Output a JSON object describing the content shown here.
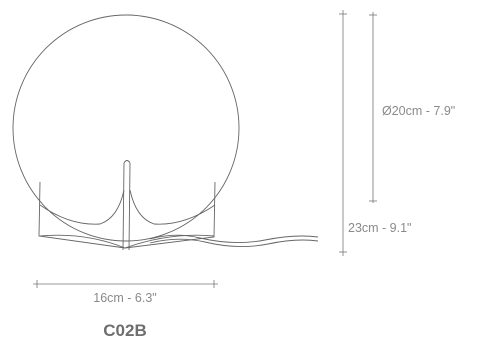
{
  "dimensions": {
    "diameter": "Ø20cm - 7.9\"",
    "height": "23cm - 9.1\"",
    "width": "16cm - 6.3\""
  },
  "model": "C02B"
}
